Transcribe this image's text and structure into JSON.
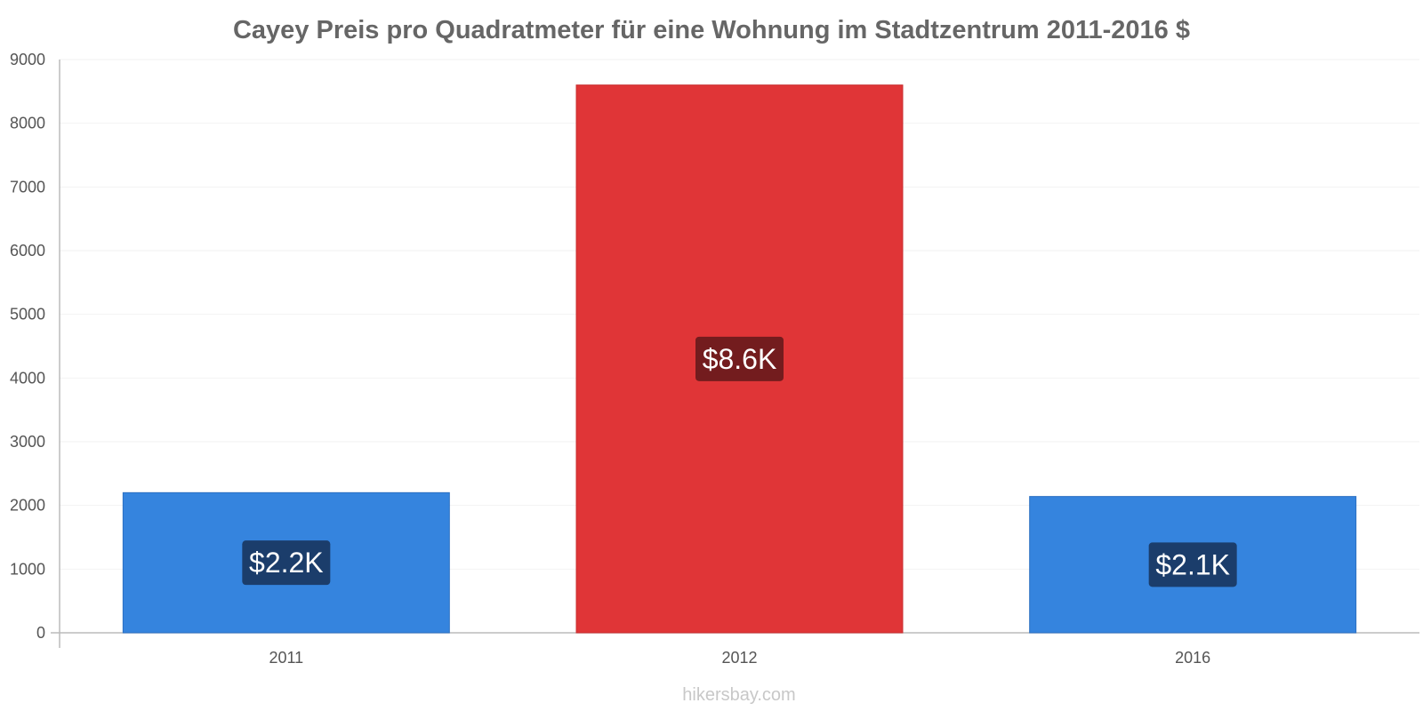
{
  "chart_data": {
    "type": "bar",
    "title": "Cayey Preis pro Quadratmeter für eine Wohnung im Stadtzentrum 2011-2016 $",
    "xlabel": "",
    "ylabel": "",
    "categories": [
      "2011",
      "2012",
      "2016"
    ],
    "values": [
      2200,
      8600,
      2140
    ],
    "data_labels": [
      "$2.2K",
      "$8.6K",
      "$2.1K"
    ],
    "ylim": [
      0,
      9000
    ],
    "yticks": [
      0,
      1000,
      2000,
      3000,
      4000,
      5000,
      6000,
      7000,
      8000,
      9000
    ],
    "grid": true,
    "legend": "none",
    "colors": {
      "bars": [
        "#3584de",
        "#e03537",
        "#3584de"
      ],
      "bar_borders": [
        "#2b6fc2",
        "#c92d2f",
        "#2b6fc2"
      ],
      "label_boxes": [
        "#1b3d6b",
        "#731c1e",
        "#1b3d6b"
      ],
      "title": "#666666",
      "axis": "#bbbbbb",
      "grid": "#f2f2f2"
    }
  },
  "watermark": "hikersbay.com"
}
